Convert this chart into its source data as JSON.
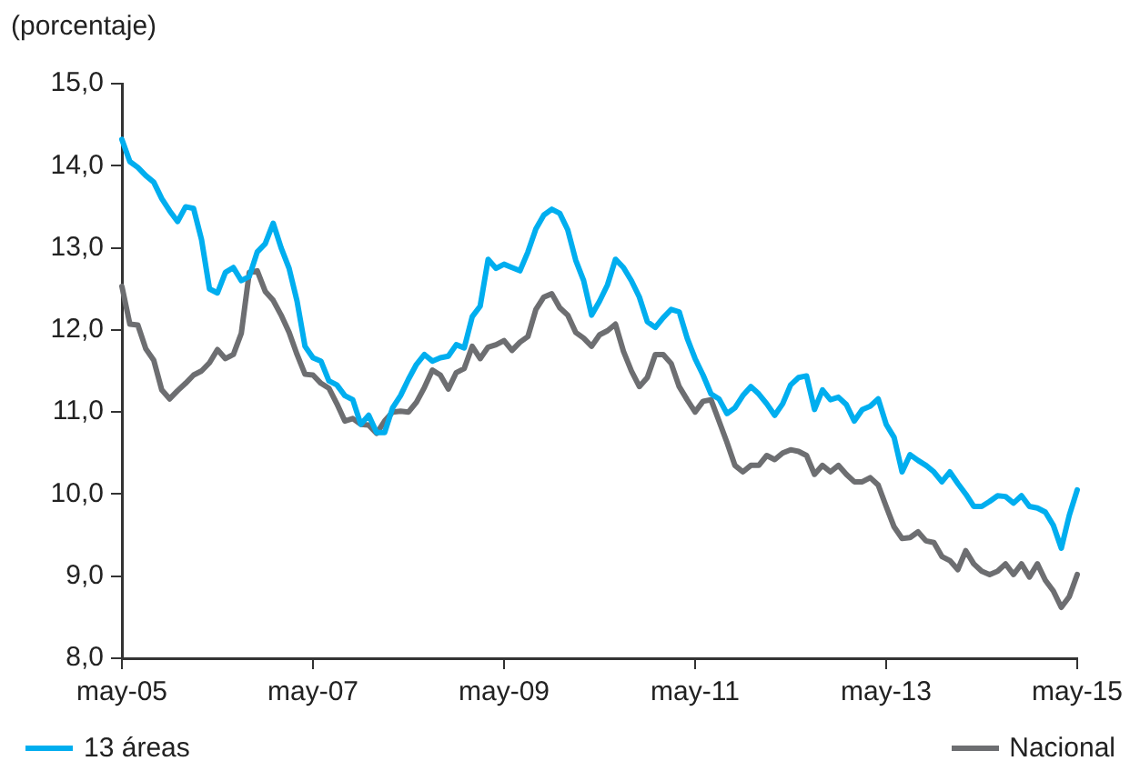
{
  "chart_data": {
    "type": "line",
    "ylabel": "(porcentaje)",
    "categories": [
      "may-05",
      null,
      null,
      null,
      null,
      null,
      null,
      null,
      null,
      null,
      null,
      null,
      null,
      null,
      null,
      null,
      null,
      null,
      null,
      null,
      null,
      null,
      null,
      null,
      "may-07",
      null,
      null,
      null,
      null,
      null,
      null,
      null,
      null,
      null,
      null,
      null,
      null,
      null,
      null,
      null,
      null,
      null,
      null,
      null,
      null,
      null,
      null,
      null,
      "may-09",
      null,
      null,
      null,
      null,
      null,
      null,
      null,
      null,
      null,
      null,
      null,
      null,
      null,
      null,
      null,
      null,
      null,
      null,
      null,
      null,
      null,
      null,
      null,
      "may-11",
      null,
      null,
      null,
      null,
      null,
      null,
      null,
      null,
      null,
      null,
      null,
      null,
      null,
      null,
      null,
      null,
      null,
      null,
      null,
      null,
      null,
      null,
      null,
      "may-13",
      null,
      null,
      null,
      null,
      null,
      null,
      null,
      null,
      null,
      null,
      null,
      null,
      null,
      null,
      null,
      null,
      null,
      null,
      null,
      null,
      null,
      null,
      null,
      "may-15"
    ],
    "series": [
      {
        "name": "13 áreas",
        "color": "#00aeef",
        "values": [
          14.32,
          14.05,
          13.98,
          13.88,
          13.8,
          13.6,
          13.45,
          13.32,
          13.5,
          13.48,
          13.1,
          12.5,
          12.45,
          12.7,
          12.76,
          12.6,
          12.65,
          12.95,
          13.05,
          13.3,
          13.0,
          12.75,
          12.35,
          11.8,
          11.66,
          11.62,
          11.38,
          11.33,
          11.2,
          11.15,
          10.85,
          10.96,
          10.75,
          10.75,
          11.05,
          11.2,
          11.4,
          11.58,
          11.7,
          11.62,
          11.66,
          11.68,
          11.82,
          11.78,
          12.16,
          12.29,
          12.86,
          12.75,
          12.8,
          12.76,
          12.72,
          12.95,
          13.23,
          13.4,
          13.47,
          13.42,
          13.22,
          12.85,
          12.6,
          12.18,
          12.35,
          12.55,
          12.86,
          12.76,
          12.6,
          12.4,
          12.1,
          12.03,
          12.15,
          12.25,
          12.22,
          11.9,
          11.65,
          11.45,
          11.22,
          11.16,
          10.98,
          11.05,
          11.2,
          11.31,
          11.22,
          11.1,
          10.96,
          11.1,
          11.33,
          11.42,
          11.44,
          11.03,
          11.27,
          11.15,
          11.18,
          11.09,
          10.89,
          11.03,
          11.07,
          11.16,
          10.85,
          10.69,
          10.27,
          10.48,
          10.41,
          10.35,
          10.27,
          10.15,
          10.27,
          10.13,
          10.0,
          9.85,
          9.85,
          9.91,
          9.98,
          9.97,
          9.89,
          9.98,
          9.85,
          9.83,
          9.78,
          9.62,
          9.34,
          9.74,
          10.05
        ]
      },
      {
        "name": "Nacional",
        "color": "#6d6e71",
        "values": [
          12.53,
          12.07,
          12.06,
          11.77,
          11.63,
          11.27,
          11.16,
          11.26,
          11.35,
          11.45,
          11.5,
          11.6,
          11.76,
          11.65,
          11.7,
          11.96,
          12.7,
          12.72,
          12.47,
          12.36,
          12.18,
          11.97,
          11.7,
          11.46,
          11.45,
          11.35,
          11.29,
          11.1,
          10.89,
          10.92,
          10.85,
          10.84,
          10.74,
          10.89,
          11.0,
          11.01,
          11.0,
          11.12,
          11.3,
          11.51,
          11.45,
          11.28,
          11.48,
          11.53,
          11.8,
          11.65,
          11.79,
          11.82,
          11.87,
          11.75,
          11.85,
          11.92,
          12.25,
          12.4,
          12.44,
          12.27,
          12.18,
          11.97,
          11.9,
          11.8,
          11.94,
          11.99,
          12.07,
          11.74,
          11.5,
          11.31,
          11.42,
          11.7,
          11.7,
          11.59,
          11.31,
          11.15,
          11.0,
          11.13,
          11.15,
          10.89,
          10.63,
          10.35,
          10.27,
          10.35,
          10.35,
          10.47,
          10.42,
          10.5,
          10.54,
          10.52,
          10.47,
          10.24,
          10.35,
          10.27,
          10.35,
          10.24,
          10.15,
          10.15,
          10.2,
          10.11,
          9.85,
          9.6,
          9.46,
          9.47,
          9.54,
          9.43,
          9.41,
          9.24,
          9.19,
          9.08,
          9.31,
          9.15,
          9.06,
          9.02,
          9.06,
          9.15,
          9.02,
          9.15,
          8.99,
          9.15,
          8.95,
          8.82,
          8.62,
          8.75,
          9.02
        ]
      }
    ],
    "ylim": [
      8,
      15
    ],
    "yticks": [
      {
        "value": 8,
        "label": "8,0"
      },
      {
        "value": 9,
        "label": "9,0"
      },
      {
        "value": 10,
        "label": "10,0"
      },
      {
        "value": 11,
        "label": "11,0"
      },
      {
        "value": 12,
        "label": "12,0"
      },
      {
        "value": 13,
        "label": "13,0"
      },
      {
        "value": 14,
        "label": "14,0"
      },
      {
        "value": 15,
        "label": "15,0"
      }
    ],
    "grid": false,
    "legend": "bottom"
  }
}
